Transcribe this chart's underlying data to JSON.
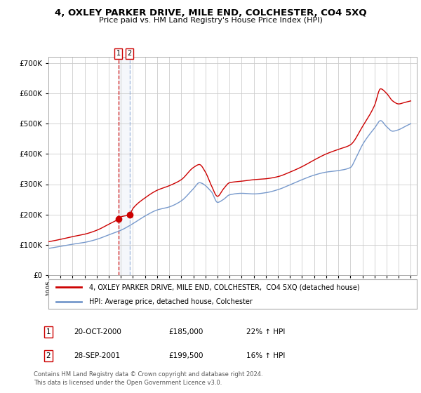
{
  "title": "4, OXLEY PARKER DRIVE, MILE END, COLCHESTER, CO4 5XQ",
  "subtitle": "Price paid vs. HM Land Registry's House Price Index (HPI)",
  "sale1_date": "20-OCT-2000",
  "sale1_price": 185000,
  "sale1_x": 2000.79,
  "sale2_date": "28-SEP-2001",
  "sale2_price": 199500,
  "sale2_x": 2001.71,
  "legend_line1": "4, OXLEY PARKER DRIVE, MILE END, COLCHESTER,  CO4 5XQ (detached house)",
  "legend_line2": "HPI: Average price, detached house, Colchester",
  "footer1": "Contains HM Land Registry data © Crown copyright and database right 2024.",
  "footer2": "This data is licensed under the Open Government Licence v3.0.",
  "red_color": "#cc0000",
  "blue_color": "#7799cc",
  "grid_color": "#cccccc",
  "ylim": [
    0,
    720000
  ],
  "yticks": [
    0,
    100000,
    200000,
    300000,
    400000,
    500000,
    600000,
    700000
  ],
  "xlim_left": 1995.0,
  "xlim_right": 2025.5
}
